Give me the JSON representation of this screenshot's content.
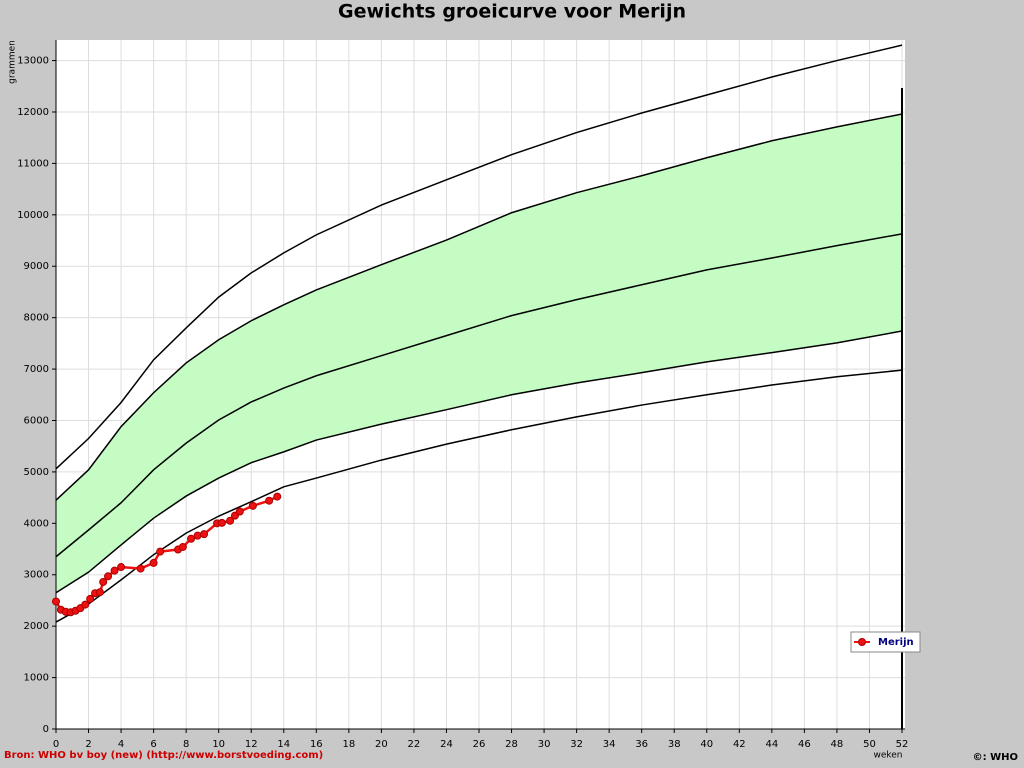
{
  "chart_data": {
    "type": "line",
    "title": "Gewichts groeicurve voor Merijn",
    "ylabel": "grammen",
    "xlabel": "weken",
    "source": "Bron: WHO bv boy (new) (http://www.borstvoeding.com)",
    "copyright": "©: WHO",
    "xlim": [
      0,
      52
    ],
    "ylim": [
      0,
      13400
    ],
    "xticks": [
      0,
      2,
      4,
      6,
      8,
      10,
      12,
      14,
      16,
      18,
      20,
      22,
      24,
      26,
      28,
      30,
      32,
      34,
      36,
      38,
      40,
      42,
      44,
      46,
      48,
      50,
      52
    ],
    "yticks": [
      0,
      1000,
      2000,
      3000,
      4000,
      5000,
      6000,
      7000,
      8000,
      9000,
      10000,
      11000,
      12000,
      13000
    ],
    "grid": true,
    "legend": "right",
    "fill_between": [
      1,
      3
    ],
    "fill_color": "#c4fcc4",
    "x": [
      0,
      2,
      4,
      6,
      8,
      10,
      12,
      14,
      16,
      20,
      24,
      28,
      32,
      36,
      40,
      44,
      48,
      52
    ],
    "series": [
      {
        "color": "#000000",
        "values": [
          5060,
          5650,
          6350,
          7180,
          7800,
          8400,
          8870,
          9260,
          9610,
          10190,
          10680,
          11170,
          11600,
          11980,
          12330,
          12680,
          13000,
          13300
        ]
      },
      {
        "color": "#000000",
        "values": [
          4450,
          5040,
          5880,
          6540,
          7120,
          7570,
          7940,
          8250,
          8540,
          9030,
          9510,
          10040,
          10430,
          10760,
          11110,
          11440,
          11710,
          11960
        ]
      },
      {
        "color": "#000000",
        "values": [
          3350,
          3870,
          4400,
          5040,
          5560,
          6010,
          6360,
          6630,
          6870,
          7260,
          7650,
          8040,
          8350,
          8640,
          8930,
          9160,
          9400,
          9630
        ]
      },
      {
        "color": "#000000",
        "values": [
          2650,
          3050,
          3580,
          4100,
          4530,
          4880,
          5180,
          5390,
          5620,
          5930,
          6210,
          6500,
          6730,
          6930,
          7140,
          7320,
          7510,
          7740
        ]
      },
      {
        "color": "#000000",
        "values": [
          2080,
          2430,
          2900,
          3390,
          3810,
          4140,
          4420,
          4710,
          4880,
          5230,
          5540,
          5820,
          6070,
          6300,
          6500,
          6690,
          6850,
          6980
        ]
      },
      {
        "name": "Merijn",
        "color": "#ee1111",
        "x": [
          0,
          0.3,
          0.6,
          0.9,
          1.2,
          1.5,
          1.8,
          2.1,
          2.4,
          2.7,
          2.9,
          3.2,
          3.6,
          4,
          5.2,
          6,
          6.4,
          7.5,
          7.8,
          8.3,
          8.7,
          9.1,
          9.9,
          10.2,
          10.7,
          11,
          11.3,
          12.1,
          13.1,
          13.6
        ],
        "values": [
          2480,
          2320,
          2280,
          2270,
          2300,
          2350,
          2420,
          2530,
          2640,
          2660,
          2860,
          2970,
          3080,
          3150,
          3120,
          3230,
          3450,
          3490,
          3540,
          3700,
          3760,
          3790,
          4000,
          4010,
          4050,
          4150,
          4230,
          4340,
          4440,
          4520
        ]
      }
    ]
  }
}
